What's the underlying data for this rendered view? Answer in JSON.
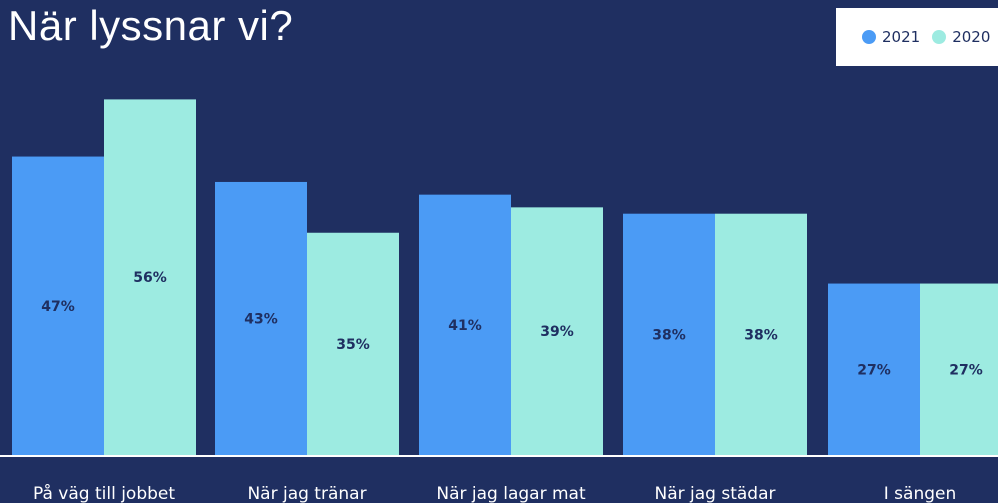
{
  "chart_data": {
    "type": "bar",
    "title": "När lyssnar vi?",
    "categories": [
      "På väg till jobbet",
      "När jag tränar",
      "När jag lagar mat",
      "När jag städar",
      "I sängen"
    ],
    "series": [
      {
        "name": "2021",
        "values": [
          47,
          43,
          41,
          38,
          27
        ],
        "labels": [
          "47%",
          "43%",
          "41%",
          "38%",
          "27%"
        ],
        "color": "#4b9bf5"
      },
      {
        "name": "2020",
        "values": [
          56,
          35,
          39,
          38,
          27
        ],
        "labels": [
          "56%",
          "35%",
          "39%",
          "38%",
          "27%"
        ],
        "color": "#9debe1"
      }
    ],
    "ylim": [
      0,
      100
    ],
    "legend": "top-right",
    "grid": false,
    "colors": {
      "background": "#1f2f61",
      "value_label": "#1f2f61",
      "category_label": "#ffffff",
      "baseline": "#ffffff"
    }
  }
}
